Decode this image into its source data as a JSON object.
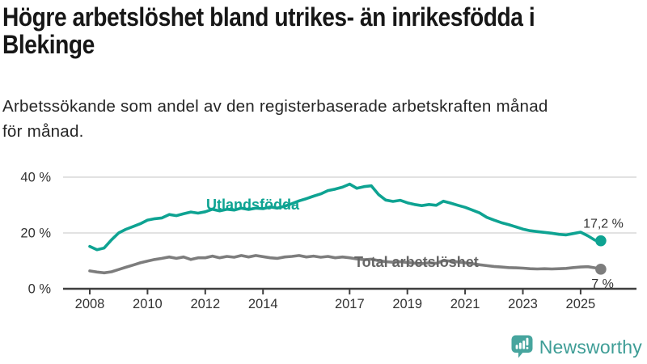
{
  "title": {
    "lines": [
      "Högre arbetslöshet bland utrikes- än inrikesfödda i",
      "Blekinge"
    ]
  },
  "subtitle": {
    "lines": [
      "Arbetssökande som andel av den registerbaserade arbetskraften månad",
      "för månad."
    ]
  },
  "chart_data": {
    "type": "line",
    "title": "Högre arbetslöshet bland utrikes- än inrikesfödda i Blekinge",
    "subtitle": "Arbetssökande som andel av den registerbaserade arbetskraften månad för månad.",
    "ylabel": "",
    "xlabel": "",
    "y_unit": "%",
    "ylim": [
      0,
      45
    ],
    "xlim": [
      2007.1,
      2026.9
    ],
    "grid": "horizontal",
    "legend": "inline-labels",
    "x": [
      2008,
      2008.25,
      2008.5,
      2008.75,
      2009,
      2009.25,
      2009.5,
      2009.75,
      2010,
      2010.25,
      2010.5,
      2010.75,
      2011,
      2011.25,
      2011.5,
      2011.75,
      2012,
      2012.25,
      2012.5,
      2012.75,
      2013,
      2013.25,
      2013.5,
      2013.75,
      2014,
      2014.25,
      2014.5,
      2014.75,
      2015,
      2015.25,
      2015.5,
      2015.75,
      2016,
      2016.25,
      2016.5,
      2016.75,
      2017,
      2017.25,
      2017.5,
      2017.75,
      2018,
      2018.25,
      2018.5,
      2018.75,
      2019,
      2019.25,
      2019.5,
      2019.75,
      2020,
      2020.25,
      2020.5,
      2020.75,
      2021,
      2021.25,
      2021.5,
      2021.75,
      2022,
      2022.25,
      2022.5,
      2022.75,
      2023,
      2023.25,
      2023.5,
      2023.75,
      2024,
      2024.25,
      2024.5,
      2024.75,
      2025,
      2025.25,
      2025.5,
      2025.7
    ],
    "series": [
      {
        "name": "Utlandsfödda",
        "color": "#0ea392",
        "label_color": "#0ea392",
        "end_label": "17,2 %",
        "end_value": 17.2,
        "values": [
          15.2,
          14.0,
          14.6,
          17.5,
          20.0,
          21.3,
          22.3,
          23.3,
          24.6,
          25.1,
          25.4,
          26.6,
          26.2,
          26.9,
          27.5,
          27.1,
          27.6,
          28.5,
          27.9,
          28.5,
          28.2,
          28.9,
          28.4,
          28.9,
          28.7,
          29.3,
          28.9,
          29.6,
          30.5,
          31.5,
          32.3,
          33.2,
          34.0,
          35.2,
          35.7,
          36.4,
          37.5,
          36.0,
          36.6,
          36.9,
          33.8,
          31.8,
          31.3,
          31.7,
          30.8,
          30.2,
          29.8,
          30.2,
          29.9,
          31.4,
          30.7,
          29.9,
          29.2,
          28.2,
          27.2,
          25.6,
          24.6,
          23.7,
          23.0,
          22.2,
          21.4,
          20.8,
          20.5,
          20.2,
          19.9,
          19.5,
          19.3,
          19.8,
          20.3,
          19.0,
          17.4,
          17.2
        ]
      },
      {
        "name": "Total arbetslöshet",
        "color": "#7d7d7d",
        "label_color": "#666666",
        "end_label": "7 %",
        "end_value": 7.0,
        "values": [
          6.4,
          6.0,
          5.7,
          6.1,
          6.9,
          7.7,
          8.5,
          9.3,
          9.9,
          10.5,
          10.9,
          11.4,
          10.9,
          11.4,
          10.5,
          11.1,
          11.1,
          11.7,
          11.1,
          11.6,
          11.3,
          11.9,
          11.4,
          11.9,
          11.5,
          11.1,
          10.9,
          11.4,
          11.6,
          11.9,
          11.4,
          11.7,
          11.3,
          11.6,
          11.1,
          11.4,
          11.1,
          10.7,
          10.4,
          10.6,
          10.1,
          9.7,
          9.5,
          9.7,
          9.4,
          9.2,
          9.0,
          9.3,
          9.1,
          10.1,
          9.9,
          9.6,
          9.3,
          9.0,
          8.6,
          8.3,
          8.0,
          7.8,
          7.6,
          7.5,
          7.4,
          7.2,
          7.1,
          7.2,
          7.1,
          7.2,
          7.3,
          7.6,
          7.8,
          7.9,
          7.5,
          7.0
        ]
      }
    ],
    "yticks": [
      {
        "value": 0,
        "label": "0 %"
      },
      {
        "value": 20,
        "label": "20 %"
      },
      {
        "value": 40,
        "label": "40 %"
      }
    ],
    "xticks": [
      {
        "value": 2008,
        "label": "2008"
      },
      {
        "value": 2010,
        "label": "2010"
      },
      {
        "value": 2012,
        "label": "2012"
      },
      {
        "value": 2014,
        "label": "2014"
      },
      {
        "value": 2017,
        "label": "2017"
      },
      {
        "value": 2019,
        "label": "2019"
      },
      {
        "value": 2021,
        "label": "2021"
      },
      {
        "value": 2023,
        "label": "2023"
      },
      {
        "value": 2025,
        "label": "2025"
      }
    ]
  },
  "footer": {
    "brand": "Newsworthy",
    "brand_color": "#3e9d96",
    "logo_icon": "bar-chart-speech-bubble-icon"
  },
  "colors": {
    "background": "#ffffff",
    "title_text": "#171717",
    "axis": "#3f3f3f",
    "axis_labels": "#333333",
    "gridline": "#d9d9d9",
    "series_foreign_born": "#0ea392",
    "series_total": "#7d7d7d",
    "brand_teal": "#3e9d96"
  }
}
